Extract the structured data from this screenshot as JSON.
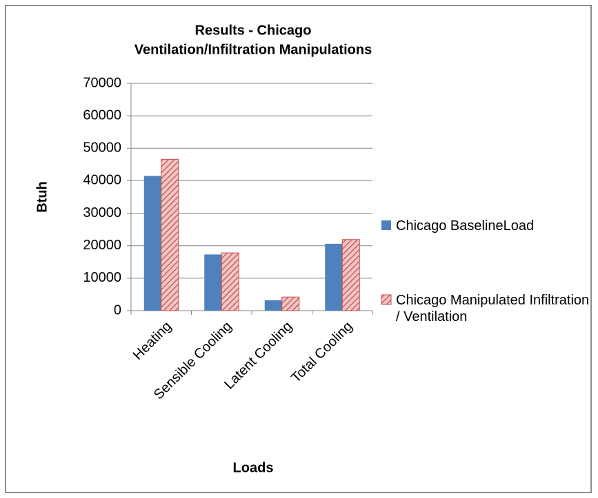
{
  "chart_data": {
    "type": "bar",
    "title": [
      "Results - Chicago",
      "Ventilation/Infiltration Manipulations"
    ],
    "x_label": "Loads",
    "y_label": "Btuh",
    "categories": [
      "Heating",
      "Sensible Cooling",
      "Latent Cooling",
      "Total Cooling"
    ],
    "series": [
      {
        "name": "Chicago BaselineLoad",
        "color": "#4f81bd",
        "values": [
          41500,
          17300,
          3200,
          20600
        ]
      },
      {
        "name": "Chicago Manipulated Infiltration / Ventilation",
        "color": "#c0504d",
        "pattern": "hatch",
        "values": [
          46600,
          17800,
          4200,
          21900
        ]
      }
    ],
    "ylim": [
      0,
      70000
    ],
    "yticks": [
      0,
      10000,
      20000,
      30000,
      40000,
      50000,
      60000,
      70000
    ],
    "grid": true,
    "legend": "right"
  }
}
